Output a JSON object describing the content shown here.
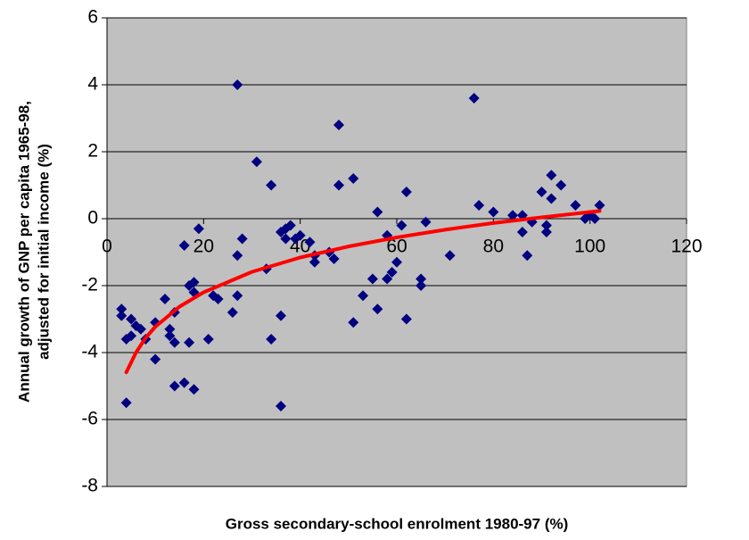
{
  "chart_data": {
    "type": "scatter",
    "xlabel": "Gross secondary-school enrolment 1980-97 (%)",
    "ylabel": [
      "Annual growth of GNP per capita 1965-98,",
      "adjusted for initial income (%)"
    ],
    "xlim": [
      0,
      120
    ],
    "xticks": [
      0,
      20,
      40,
      60,
      80,
      100,
      120
    ],
    "ylim": [
      -8,
      6
    ],
    "yticks": [
      -8,
      -6,
      -4,
      -2,
      0,
      2,
      4,
      6
    ],
    "grid": true,
    "background": "#c0c0c0",
    "series": [
      {
        "color": "#000080",
        "x": [
          3,
          3,
          4,
          4,
          5,
          5,
          6,
          7,
          8,
          10,
          10,
          12,
          13,
          13,
          14,
          14,
          14,
          16,
          16,
          17,
          17,
          18,
          18,
          18,
          19,
          21,
          22,
          23,
          26,
          27,
          27,
          27,
          28,
          31,
          33,
          34,
          34,
          36,
          36,
          36,
          37,
          37,
          38,
          39,
          40,
          42,
          43,
          43,
          46,
          47,
          48,
          48,
          51,
          51,
          53,
          55,
          56,
          56,
          58,
          58,
          59,
          60,
          61,
          62,
          62,
          65,
          65,
          66,
          71,
          76,
          77,
          80,
          84,
          86,
          86,
          87,
          88,
          90,
          91,
          91,
          92,
          92,
          94,
          97,
          99,
          100,
          101,
          102
        ],
        "values": [
          -2.7,
          -2.9,
          -3.6,
          -5.5,
          -3.0,
          -3.5,
          -3.2,
          -3.3,
          -3.6,
          -3.1,
          -4.2,
          -2.4,
          -3.3,
          -3.5,
          -3.7,
          -5.0,
          -2.8,
          -4.9,
          -0.8,
          -2.0,
          -3.7,
          -2.2,
          -5.1,
          -1.9,
          -0.3,
          -3.6,
          -2.3,
          -2.4,
          -2.8,
          4.0,
          -2.3,
          -1.1,
          -0.6,
          1.7,
          -1.5,
          1.0,
          -3.6,
          -0.4,
          -2.9,
          -5.6,
          -0.6,
          -0.3,
          -0.2,
          -0.6,
          -0.5,
          -0.7,
          -1.3,
          -1.1,
          -1.0,
          -1.2,
          2.8,
          1.0,
          1.2,
          -3.1,
          -2.3,
          -1.8,
          0.2,
          -2.7,
          -0.5,
          -1.8,
          -1.6,
          -1.3,
          -0.2,
          -3.0,
          0.8,
          -1.8,
          -2.0,
          -0.1,
          -1.1,
          3.6,
          0.4,
          0.2,
          0.1,
          -0.4,
          0.1,
          -1.1,
          -0.1,
          0.8,
          -0.4,
          -0.2,
          0.6,
          1.3,
          1.0,
          0.4,
          0.0,
          0.1,
          0.0,
          0.4
        ]
      }
    ],
    "trendline": {
      "color": "#ff0000",
      "x": [
        4,
        6,
        8,
        10,
        15,
        20,
        30,
        40,
        50,
        60,
        70,
        80,
        90,
        102
      ],
      "values": [
        -4.59,
        -4.0,
        -3.56,
        -3.23,
        -2.63,
        -2.2,
        -1.59,
        -1.16,
        -0.83,
        -0.56,
        -0.33,
        -0.13,
        0.04,
        0.23
      ]
    }
  }
}
